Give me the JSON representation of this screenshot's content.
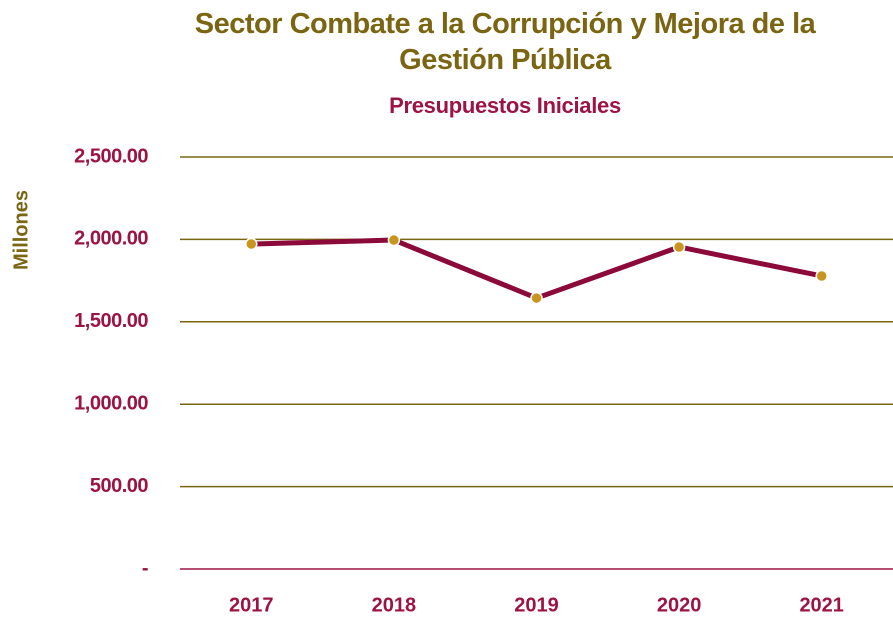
{
  "chart_data": {
    "type": "line",
    "title": "Sector Combate a la Corrupción y Mejora de la Gestión Pública",
    "subtitle": "Presupuestos Iniciales",
    "y_label": "Millones",
    "categories": [
      "2017",
      "2018",
      "2019",
      "2020",
      "2021"
    ],
    "values": [
      1972,
      1996,
      1644,
      1954,
      1778
    ],
    "color": "#8b0a3a",
    "marker_color": "#c8961e",
    "ylim": [
      0,
      2500
    ],
    "yticks": [
      {
        "value": 0,
        "label": "-"
      },
      {
        "value": 500,
        "label": "500.00"
      },
      {
        "value": 1000,
        "label": "1,000.00"
      },
      {
        "value": 1500,
        "label": "1,500.00"
      },
      {
        "value": 2000,
        "label": "2,000.00"
      },
      {
        "value": 2500,
        "label": "2,500.00"
      }
    ],
    "grid": true
  }
}
